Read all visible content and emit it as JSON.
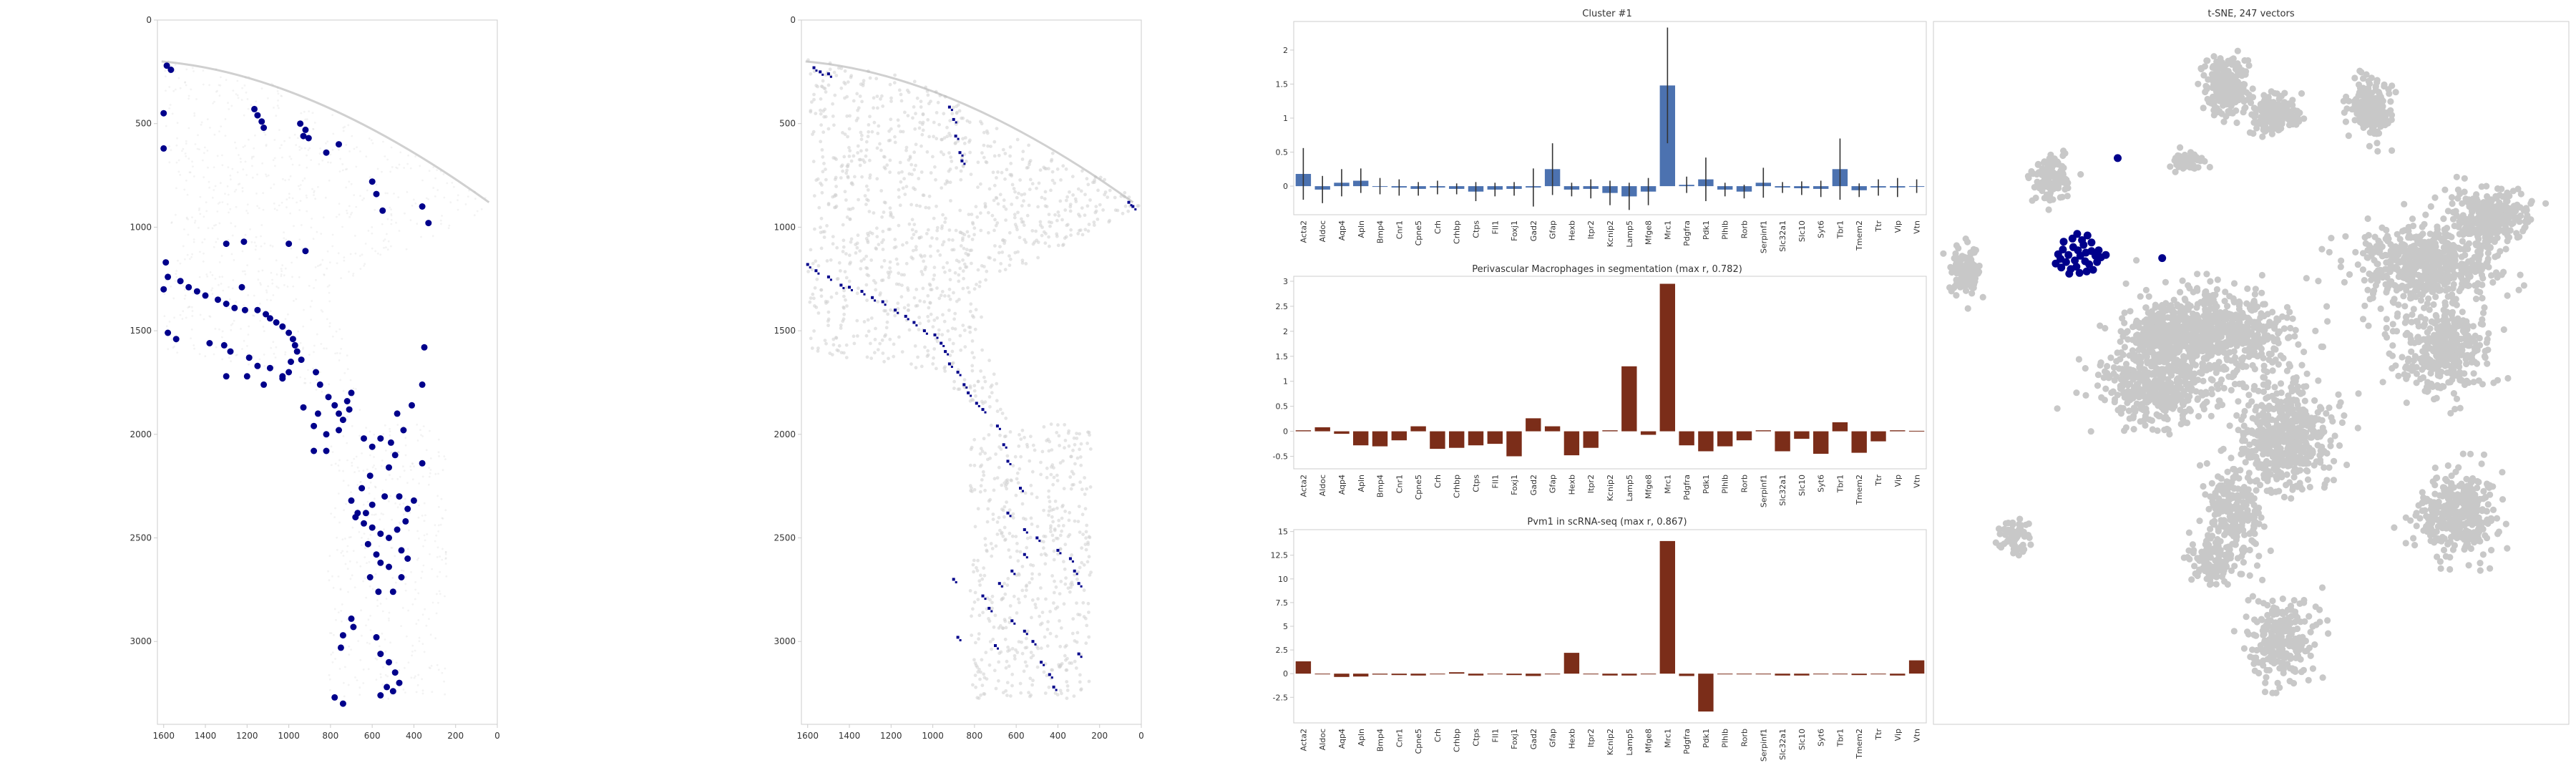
{
  "colors": {
    "background": "#ffffff",
    "frame": "#cccccc",
    "tick_text": "#333333",
    "cloud": "#c8c8c8",
    "highlight": "#00008b",
    "cluster_bar": "#4c72b0",
    "pred_bar": "#7b2d19",
    "errorbar": "#333333"
  },
  "genes": [
    "Acta2",
    "Aldoc",
    "Aqp4",
    "Apln",
    "Bmp4",
    "Cnr1",
    "Cpne5",
    "Crh",
    "Crhbp",
    "Ctps",
    "Fll1",
    "Foxj1",
    "Gad2",
    "Gfap",
    "Hexb",
    "Itpr2",
    "Kcnip2",
    "Lamp5",
    "Mfge8",
    "Mrc1",
    "Pdgfra",
    "Pdk1",
    "Plhlb",
    "Rorb",
    "Serpinf1",
    "Slc32a1",
    "Slc10",
    "Syt6",
    "Tbr1",
    "Tmem2",
    "Ttr",
    "Vip",
    "Vtn"
  ],
  "chart_data": [
    {
      "type": "scatter",
      "id": "tissue-with-cells",
      "xlim": [
        1630,
        0
      ],
      "ylim": [
        3400,
        0
      ],
      "xticks": [
        1600,
        1400,
        1200,
        1000,
        800,
        600,
        400,
        200,
        0
      ],
      "yticks": [
        0,
        500,
        1000,
        1500,
        2000,
        2500,
        3000
      ],
      "highlight_points": [
        [
          1585,
          220
        ],
        [
          1565,
          240
        ],
        [
          1600,
          450
        ],
        [
          1600,
          620
        ],
        [
          1165,
          430
        ],
        [
          1150,
          460
        ],
        [
          1130,
          490
        ],
        [
          1120,
          520
        ],
        [
          945,
          500
        ],
        [
          920,
          530
        ],
        [
          930,
          560
        ],
        [
          905,
          570
        ],
        [
          760,
          600
        ],
        [
          820,
          640
        ],
        [
          600,
          780
        ],
        [
          580,
          840
        ],
        [
          550,
          920
        ],
        [
          360,
          900
        ],
        [
          330,
          980
        ],
        [
          1300,
          1080
        ],
        [
          1215,
          1070
        ],
        [
          1000,
          1080
        ],
        [
          920,
          1115
        ],
        [
          1225,
          1290
        ],
        [
          1590,
          1170
        ],
        [
          1580,
          1240
        ],
        [
          1520,
          1260
        ],
        [
          1480,
          1290
        ],
        [
          1440,
          1310
        ],
        [
          1400,
          1330
        ],
        [
          1340,
          1350
        ],
        [
          1300,
          1370
        ],
        [
          1260,
          1390
        ],
        [
          1600,
          1300
        ],
        [
          1210,
          1400
        ],
        [
          1150,
          1400
        ],
        [
          1110,
          1420
        ],
        [
          1090,
          1440
        ],
        [
          1060,
          1460
        ],
        [
          1030,
          1480
        ],
        [
          1000,
          1510
        ],
        [
          980,
          1540
        ],
        [
          970,
          1570
        ],
        [
          960,
          1600
        ],
        [
          940,
          1640
        ],
        [
          990,
          1650
        ],
        [
          1000,
          1700
        ],
        [
          1030,
          1720
        ],
        [
          1580,
          1510
        ],
        [
          1540,
          1540
        ],
        [
          1380,
          1560
        ],
        [
          1310,
          1570
        ],
        [
          1280,
          1600
        ],
        [
          1190,
          1630
        ],
        [
          1150,
          1670
        ],
        [
          1090,
          1680
        ],
        [
          1030,
          1730
        ],
        [
          1300,
          1720
        ],
        [
          1200,
          1720
        ],
        [
          1120,
          1760
        ],
        [
          870,
          1700
        ],
        [
          850,
          1760
        ],
        [
          810,
          1820
        ],
        [
          780,
          1860
        ],
        [
          760,
          1900
        ],
        [
          860,
          1900
        ],
        [
          880,
          1960
        ],
        [
          820,
          2000
        ],
        [
          930,
          1870
        ],
        [
          700,
          1800
        ],
        [
          720,
          1840
        ],
        [
          710,
          1880
        ],
        [
          740,
          1930
        ],
        [
          760,
          1980
        ],
        [
          820,
          2080
        ],
        [
          880,
          2080
        ],
        [
          640,
          2020
        ],
        [
          600,
          2060
        ],
        [
          560,
          2020
        ],
        [
          510,
          2040
        ],
        [
          490,
          2100
        ],
        [
          520,
          2160
        ],
        [
          610,
          2200
        ],
        [
          650,
          2260
        ],
        [
          700,
          2320
        ],
        [
          670,
          2380
        ],
        [
          640,
          2430
        ],
        [
          600,
          2450
        ],
        [
          560,
          2480
        ],
        [
          520,
          2500
        ],
        [
          480,
          2460
        ],
        [
          440,
          2420
        ],
        [
          430,
          2360
        ],
        [
          470,
          2300
        ],
        [
          540,
          2300
        ],
        [
          600,
          2340
        ],
        [
          630,
          2380
        ],
        [
          680,
          2400
        ],
        [
          620,
          2530
        ],
        [
          580,
          2580
        ],
        [
          560,
          2620
        ],
        [
          610,
          2690
        ],
        [
          570,
          2760
        ],
        [
          500,
          2760
        ],
        [
          460,
          2690
        ],
        [
          430,
          2600
        ],
        [
          460,
          2560
        ],
        [
          520,
          2640
        ],
        [
          700,
          2890
        ],
        [
          690,
          2930
        ],
        [
          740,
          2970
        ],
        [
          750,
          3030
        ],
        [
          580,
          2980
        ],
        [
          560,
          3060
        ],
        [
          520,
          3100
        ],
        [
          490,
          3150
        ],
        [
          470,
          3200
        ],
        [
          530,
          3220
        ],
        [
          500,
          3240
        ],
        [
          560,
          3260
        ],
        [
          780,
          3270
        ],
        [
          740,
          3300
        ],
        [
          400,
          2320
        ],
        [
          360,
          2140
        ],
        [
          350,
          1580
        ],
        [
          360,
          1760
        ],
        [
          410,
          1860
        ],
        [
          480,
          1900
        ],
        [
          450,
          1980
        ]
      ]
    },
    {
      "type": "scatter",
      "id": "tissue-segmentation",
      "xlim": [
        1630,
        0
      ],
      "ylim": [
        3400,
        0
      ],
      "xticks": [
        1600,
        1400,
        1200,
        1000,
        800,
        600,
        400,
        200,
        0
      ],
      "yticks": [
        0,
        500,
        1000,
        1500,
        2000,
        2500,
        3000
      ],
      "highlight_points": [
        [
          1570,
          230
        ],
        [
          1540,
          250
        ],
        [
          1500,
          260
        ],
        [
          920,
          420
        ],
        [
          900,
          480
        ],
        [
          890,
          560
        ],
        [
          870,
          640
        ],
        [
          860,
          680
        ],
        [
          1600,
          1180
        ],
        [
          1560,
          1210
        ],
        [
          1500,
          1240
        ],
        [
          1440,
          1280
        ],
        [
          1400,
          1290
        ],
        [
          1340,
          1310
        ],
        [
          1290,
          1340
        ],
        [
          1240,
          1360
        ],
        [
          1180,
          1400
        ],
        [
          1130,
          1430
        ],
        [
          1090,
          1460
        ],
        [
          1040,
          1500
        ],
        [
          990,
          1520
        ],
        [
          960,
          1560
        ],
        [
          940,
          1600
        ],
        [
          920,
          1660
        ],
        [
          880,
          1700
        ],
        [
          850,
          1760
        ],
        [
          830,
          1800
        ],
        [
          790,
          1850
        ],
        [
          760,
          1880
        ],
        [
          690,
          1960
        ],
        [
          660,
          2050
        ],
        [
          640,
          2130
        ],
        [
          580,
          2260
        ],
        [
          640,
          2380
        ],
        [
          560,
          2460
        ],
        [
          500,
          2500
        ],
        [
          400,
          2560
        ],
        [
          340,
          2600
        ],
        [
          320,
          2660
        ],
        [
          300,
          2720
        ],
        [
          560,
          2580
        ],
        [
          620,
          2660
        ],
        [
          680,
          2720
        ],
        [
          760,
          2780
        ],
        [
          730,
          2840
        ],
        [
          620,
          2900
        ],
        [
          560,
          2950
        ],
        [
          520,
          3000
        ],
        [
          700,
          3020
        ],
        [
          480,
          3100
        ],
        [
          440,
          3160
        ],
        [
          420,
          3220
        ],
        [
          900,
          2700
        ],
        [
          880,
          2980
        ],
        [
          300,
          3060
        ],
        [
          60,
          880
        ],
        [
          40,
          900
        ]
      ]
    },
    {
      "type": "bar",
      "id": "cluster",
      "title": "Cluster #1",
      "categories_ref": "genes",
      "values": [
        0.18,
        -0.05,
        0.05,
        0.08,
        0.0,
        -0.02,
        -0.04,
        -0.02,
        -0.04,
        -0.08,
        -0.05,
        -0.04,
        -0.02,
        0.25,
        -0.05,
        -0.04,
        -0.1,
        -0.15,
        -0.08,
        1.48,
        0.02,
        0.1,
        -0.05,
        -0.08,
        0.05,
        -0.02,
        -0.03,
        -0.04,
        0.25,
        -0.06,
        -0.02,
        -0.02,
        0.0
      ],
      "errors": [
        0.38,
        0.2,
        0.2,
        0.18,
        0.12,
        0.12,
        0.1,
        0.1,
        0.08,
        0.14,
        0.1,
        0.1,
        0.28,
        0.38,
        0.1,
        0.14,
        0.18,
        0.2,
        0.2,
        0.85,
        0.12,
        0.32,
        0.1,
        0.1,
        0.22,
        0.08,
        0.1,
        0.12,
        0.45,
        0.1,
        0.12,
        0.14,
        0.1
      ],
      "ylim": [
        -0.42,
        2.42
      ],
      "yticks": [
        0.0,
        0.5,
        1.0,
        1.5,
        2.0
      ]
    },
    {
      "type": "bar",
      "id": "segmentation",
      "title": "Perivascular Macrophages in segmentation (max r, 0.782)",
      "categories_ref": "genes",
      "values": [
        0.02,
        0.08,
        -0.05,
        -0.28,
        -0.3,
        -0.18,
        0.1,
        -0.35,
        -0.33,
        -0.28,
        -0.25,
        -0.5,
        0.26,
        0.1,
        -0.48,
        -0.33,
        0.02,
        1.3,
        -0.07,
        2.95,
        -0.28,
        -0.4,
        -0.3,
        -0.18,
        0.02,
        -0.4,
        -0.15,
        -0.45,
        0.18,
        -0.43,
        -0.2,
        0.02,
        0.01
      ],
      "ylim": [
        -0.75,
        3.1
      ],
      "yticks": [
        -0.5,
        0.0,
        0.5,
        1.0,
        1.5,
        2.0,
        2.5,
        3.0
      ]
    },
    {
      "type": "bar",
      "id": "scrnaseq",
      "title": "Pvm1 in scRNA-seq (max r, 0.867)",
      "categories_ref": "genes",
      "values": [
        1.3,
        0.0,
        -0.35,
        -0.3,
        -0.1,
        -0.15,
        -0.2,
        0.0,
        0.15,
        -0.2,
        0.0,
        -0.15,
        -0.25,
        0.0,
        2.2,
        0.0,
        -0.2,
        -0.2,
        0.0,
        14.0,
        -0.25,
        -4.0,
        0.0,
        0.0,
        0.0,
        -0.2,
        -0.2,
        0.0,
        0.0,
        -0.15,
        0.0,
        -0.2,
        1.4
      ],
      "ylim": [
        -5.2,
        15.2
      ],
      "yticks": [
        -2.5,
        0.0,
        2.5,
        5.0,
        7.5,
        10.0,
        12.5,
        15.0
      ]
    },
    {
      "type": "scatter",
      "id": "tsne",
      "title": "t-SNE, 247 vectors",
      "highlight_points": [
        [
          -21.5,
          15.0
        ],
        [
          -21.8,
          15.7
        ],
        [
          -20.8,
          15.4
        ],
        [
          -22.2,
          14.4
        ],
        [
          -20.9,
          14.3
        ],
        [
          -23.0,
          15.1
        ],
        [
          -21.1,
          16.4
        ],
        [
          -22.4,
          16.1
        ],
        [
          -20.1,
          15.6
        ],
        [
          -23.3,
          14.2
        ],
        [
          -22.0,
          13.6
        ],
        [
          -20.4,
          13.9
        ],
        [
          -21.3,
          17.0
        ],
        [
          -19.6,
          15.0
        ],
        [
          -23.7,
          15.8
        ],
        [
          -22.7,
          13.3
        ],
        [
          -20.1,
          16.7
        ],
        [
          -24.0,
          14.6
        ],
        [
          -19.4,
          14.2
        ],
        [
          -22.5,
          17.2
        ],
        [
          -21.6,
          12.8
        ],
        [
          -23.6,
          16.8
        ],
        [
          -19.2,
          15.7
        ],
        [
          -24.3,
          15.2
        ],
        [
          -20.7,
          13.0
        ],
        [
          -22.9,
          12.7
        ],
        [
          -19.9,
          13.2
        ],
        [
          -20.6,
          17.6
        ],
        [
          -24.6,
          14.0
        ],
        [
          -21.9,
          17.8
        ],
        [
          -18.9,
          14.8
        ],
        [
          -23.9,
          13.5
        ],
        [
          -18.3,
          15.1
        ],
        [
          -16.8,
          27.5
        ],
        [
          -11.2,
          14.7
        ]
      ]
    }
  ]
}
